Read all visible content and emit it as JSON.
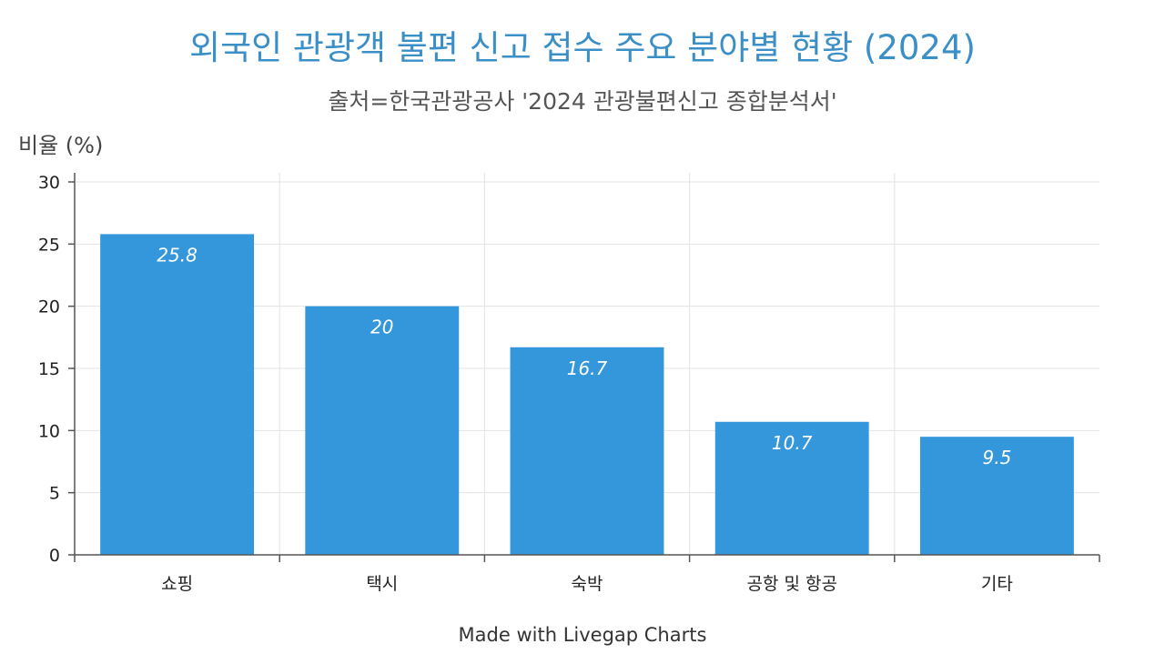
{
  "chart_data": {
    "type": "bar",
    "title": "외국인 관광객 불편 신고 접수 주요 분야별 현황 (2024)",
    "subtitle": "출처=한국관광공사 '2024 관광불편신고 종합분석서'",
    "xlabel": "",
    "ylabel": "비율 (%)",
    "categories": [
      "쇼핑",
      "택시",
      "숙박",
      "공항 및 항공",
      "기타"
    ],
    "values": [
      25.8,
      20,
      16.7,
      10.7,
      9.5
    ],
    "ylim": [
      0,
      30
    ],
    "yticks": [
      0,
      5,
      10,
      15,
      20,
      25,
      30
    ],
    "grid": true,
    "colors": {
      "bar": "#3497db",
      "title": "#3b8fc7",
      "grid": "#e3e3e3",
      "axis": "#555555"
    }
  },
  "footer": {
    "watermark": "Made with Livegap Charts"
  }
}
